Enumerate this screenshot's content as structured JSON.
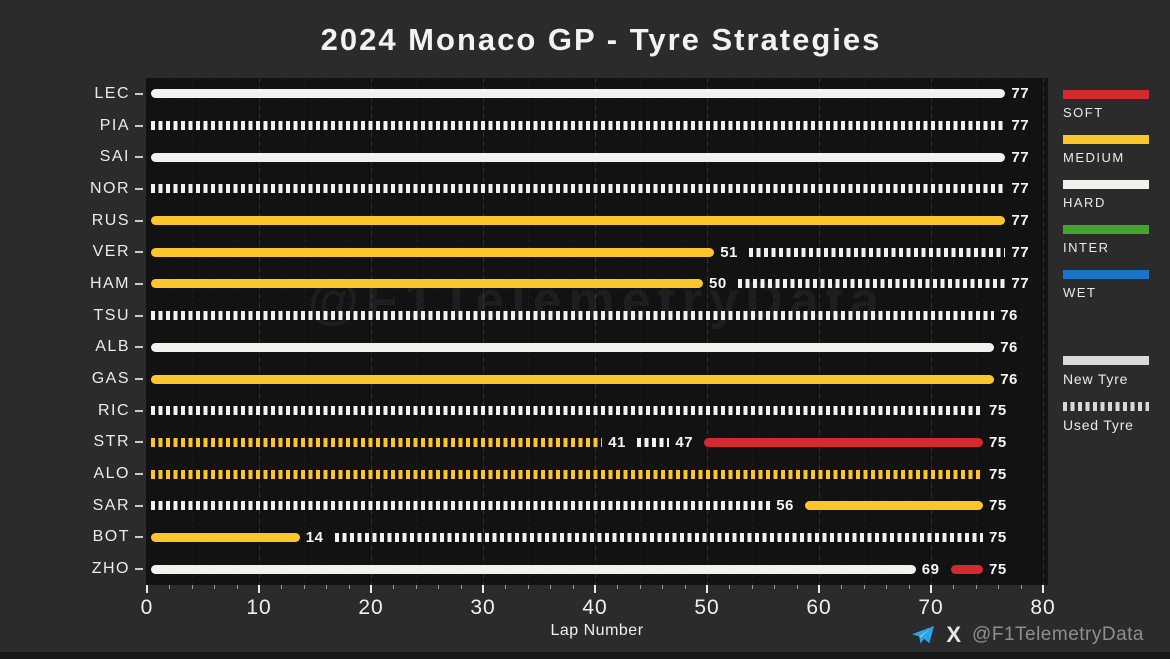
{
  "page": {
    "title": "2024 Monaco GP - Tyre Strategies",
    "xlabel": "Lap Number",
    "watermark": "@F1TelemetryData"
  },
  "footer": {
    "handle": "@F1TelemetryData",
    "x_glyph": "X",
    "telegram_icon": "telegram-paper-plane-icon",
    "telegram_color": "#2aa4e4"
  },
  "colors": {
    "SOFT": "#d22a2e",
    "MEDIUM": "#fdc52c",
    "HARD": "#f1f1ee",
    "INTER": "#45a52f",
    "WET": "#1a74c8",
    "legend_gray": "#d9d9d9",
    "background": "#2b2b2b",
    "plot_background": "#121212"
  },
  "legend": {
    "compounds": [
      {
        "label": "SOFT",
        "color_key": "SOFT"
      },
      {
        "label": "MEDIUM",
        "color_key": "MEDIUM"
      },
      {
        "label": "HARD",
        "color_key": "HARD"
      },
      {
        "label": "INTER",
        "color_key": "INTER"
      },
      {
        "label": "WET",
        "color_key": "WET"
      }
    ],
    "usage": [
      {
        "label": "New Tyre",
        "style": "solid"
      },
      {
        "label": "Used Tyre",
        "style": "dashed"
      }
    ]
  },
  "chart_data": {
    "type": "bar",
    "orientation": "horizontal",
    "title": "2024 Monaco GP - Tyre Strategies",
    "xlabel": "Lap Number",
    "xlim": [
      0,
      80
    ],
    "x_major_ticks": [
      0,
      10,
      20,
      30,
      40,
      50,
      60,
      70,
      80
    ],
    "x_minor_step": 2,
    "grid": "vertical-dashed",
    "legend_position": "right",
    "drivers": [
      {
        "code": "LEC",
        "stints": [
          {
            "compound": "HARD",
            "condition": "new",
            "start": 0,
            "end": 77,
            "label": "77"
          }
        ]
      },
      {
        "code": "PIA",
        "stints": [
          {
            "compound": "HARD",
            "condition": "used",
            "start": 0,
            "end": 77,
            "label": "77"
          }
        ]
      },
      {
        "code": "SAI",
        "stints": [
          {
            "compound": "HARD",
            "condition": "new",
            "start": 0,
            "end": 77,
            "label": "77"
          }
        ]
      },
      {
        "code": "NOR",
        "stints": [
          {
            "compound": "HARD",
            "condition": "used",
            "start": 0,
            "end": 77,
            "label": "77"
          }
        ]
      },
      {
        "code": "RUS",
        "stints": [
          {
            "compound": "MEDIUM",
            "condition": "new",
            "start": 0,
            "end": 77,
            "label": "77"
          }
        ]
      },
      {
        "code": "VER",
        "stints": [
          {
            "compound": "MEDIUM",
            "condition": "new",
            "start": 0,
            "end": 51,
            "label": "51"
          },
          {
            "compound": "HARD",
            "condition": "used",
            "start": 51,
            "end": 77,
            "label": "77"
          }
        ]
      },
      {
        "code": "HAM",
        "stints": [
          {
            "compound": "MEDIUM",
            "condition": "new",
            "start": 0,
            "end": 50,
            "label": "50"
          },
          {
            "compound": "HARD",
            "condition": "used",
            "start": 50,
            "end": 77,
            "label": "77"
          }
        ]
      },
      {
        "code": "TSU",
        "stints": [
          {
            "compound": "HARD",
            "condition": "used",
            "start": 0,
            "end": 76,
            "label": "76"
          }
        ]
      },
      {
        "code": "ALB",
        "stints": [
          {
            "compound": "HARD",
            "condition": "new",
            "start": 0,
            "end": 76,
            "label": "76"
          }
        ]
      },
      {
        "code": "GAS",
        "stints": [
          {
            "compound": "MEDIUM",
            "condition": "new",
            "start": 0,
            "end": 76,
            "label": "76"
          }
        ]
      },
      {
        "code": "RIC",
        "stints": [
          {
            "compound": "HARD",
            "condition": "used",
            "start": 0,
            "end": 75,
            "label": "75"
          }
        ]
      },
      {
        "code": "STR",
        "stints": [
          {
            "compound": "MEDIUM",
            "condition": "used",
            "start": 0,
            "end": 41,
            "label": "41"
          },
          {
            "compound": "HARD",
            "condition": "used",
            "start": 41,
            "end": 47,
            "label": "47"
          },
          {
            "compound": "SOFT",
            "condition": "new",
            "start": 47,
            "end": 75,
            "label": "75"
          }
        ]
      },
      {
        "code": "ALO",
        "stints": [
          {
            "compound": "MEDIUM",
            "condition": "used",
            "start": 0,
            "end": 75,
            "label": "75"
          }
        ]
      },
      {
        "code": "SAR",
        "stints": [
          {
            "compound": "HARD",
            "condition": "used",
            "start": 0,
            "end": 56,
            "label": "56"
          },
          {
            "compound": "MEDIUM",
            "condition": "new",
            "start": 56,
            "end": 75,
            "label": "75"
          }
        ]
      },
      {
        "code": "BOT",
        "stints": [
          {
            "compound": "MEDIUM",
            "condition": "new",
            "start": 0,
            "end": 14,
            "label": "14"
          },
          {
            "compound": "HARD",
            "condition": "used",
            "start": 14,
            "end": 75,
            "label": "75"
          }
        ]
      },
      {
        "code": "ZHO",
        "stints": [
          {
            "compound": "HARD",
            "condition": "new",
            "start": 0,
            "end": 69,
            "label": "69"
          },
          {
            "compound": "SOFT",
            "condition": "new",
            "start": 69,
            "end": 75,
            "label": "75"
          }
        ]
      }
    ]
  }
}
